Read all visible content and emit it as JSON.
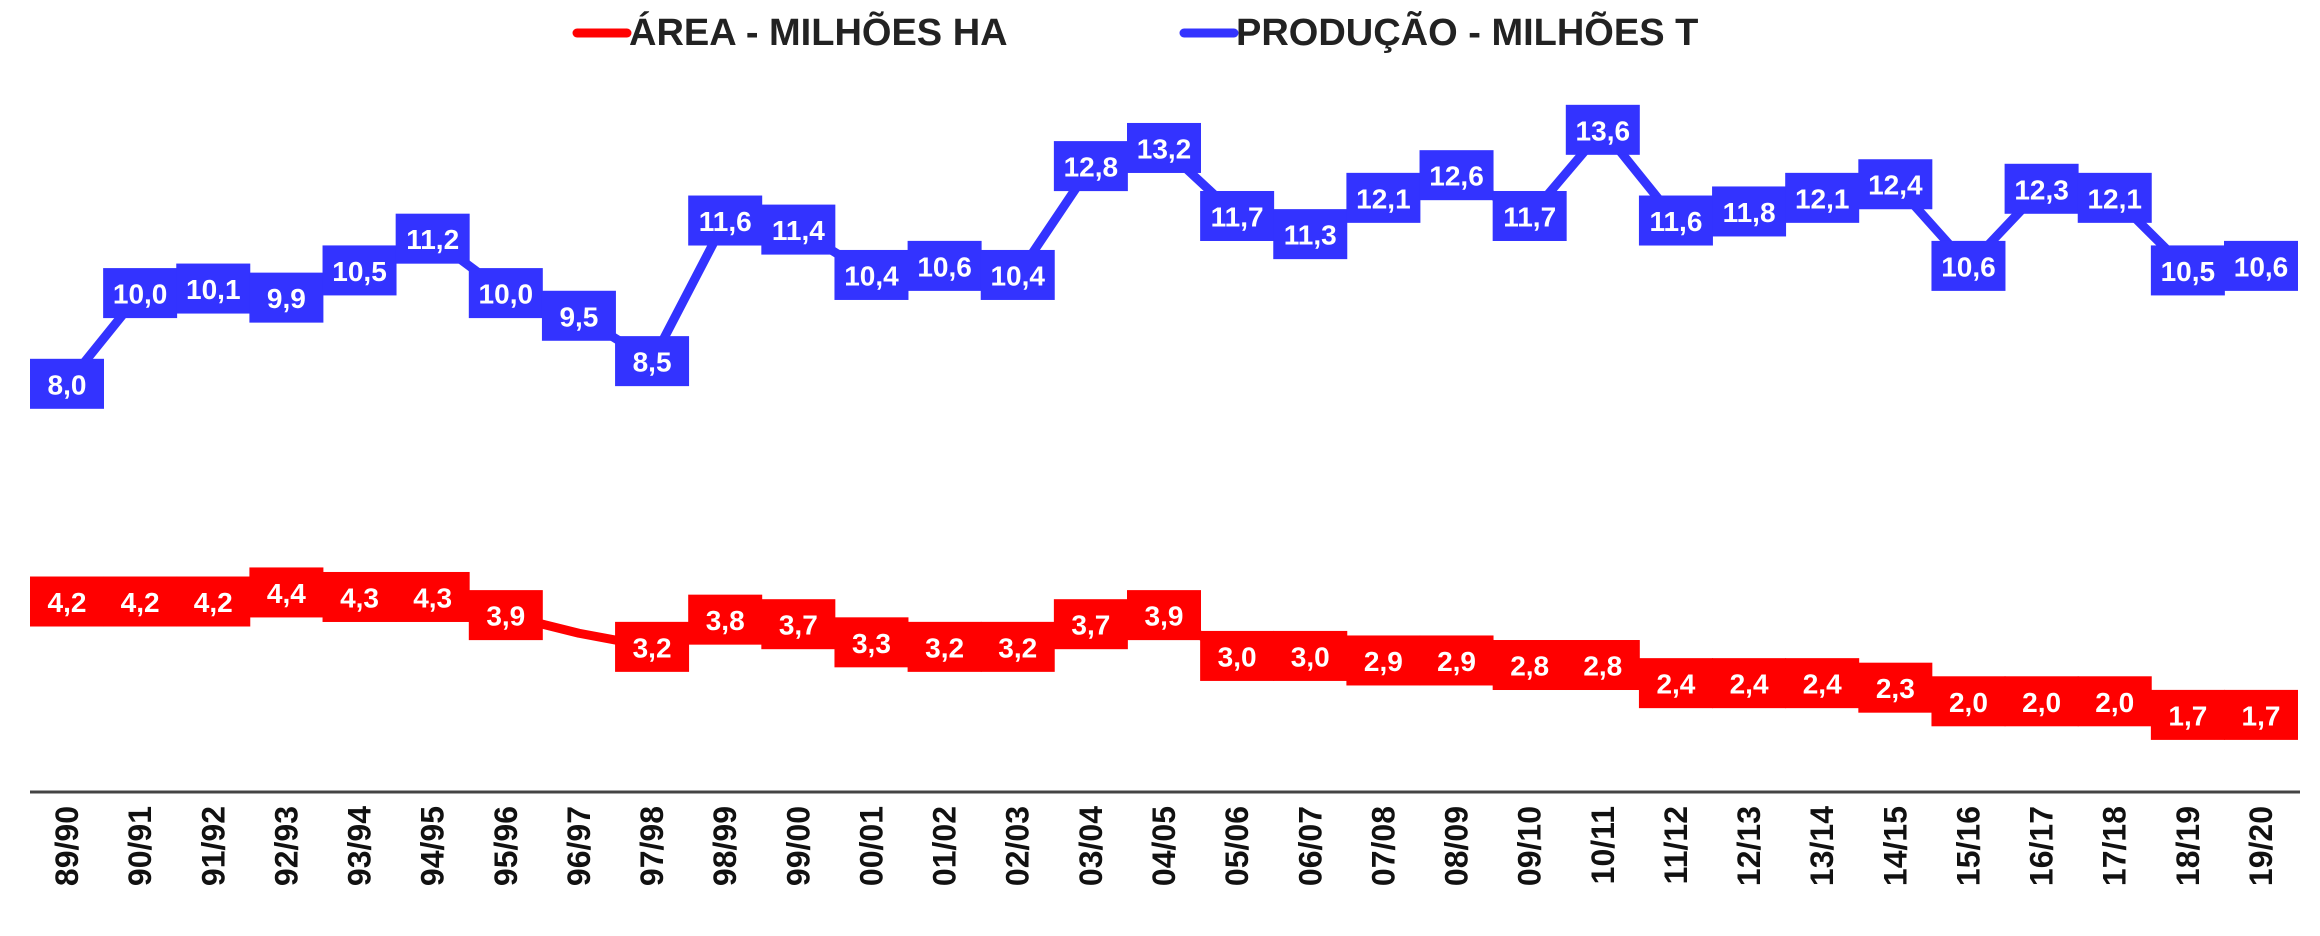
{
  "chart_data": {
    "type": "line",
    "categories": [
      "89/90",
      "90/91",
      "91/92",
      "92/93",
      "93/94",
      "94/95",
      "95/96",
      "96/97",
      "97/98",
      "98/99",
      "99/00",
      "00/01",
      "01/02",
      "02/03",
      "03/04",
      "04/05",
      "05/06",
      "06/07",
      "07/08",
      "08/09",
      "09/10",
      "10/11",
      "11/12",
      "12/13",
      "13/14",
      "14/15",
      "15/16",
      "16/17",
      "17/18",
      "18/19",
      "19/20"
    ],
    "series": [
      {
        "name": "ÁREA - MILHÕES HA",
        "color": "#ff0000",
        "values": [
          4.2,
          4.2,
          4.2,
          4.4,
          4.3,
          4.3,
          3.9,
          3.5,
          3.2,
          3.8,
          3.7,
          3.3,
          3.2,
          3.2,
          3.7,
          3.9,
          3.0,
          3.0,
          2.9,
          2.9,
          2.8,
          2.8,
          2.4,
          2.4,
          2.4,
          2.3,
          2.0,
          2.0,
          2.0,
          1.7,
          1.7
        ],
        "value_labels": [
          "4,2",
          "4,2",
          "4,2",
          "4,4",
          "4,3",
          "4,3",
          "3,9",
          null,
          "3,2",
          "3,8",
          "3,7",
          "3,3",
          "3,2",
          "3,2",
          "3,7",
          "3,9",
          "3,0",
          "3,0",
          "2,9",
          "2,9",
          "2,8",
          "2,8",
          "2,4",
          "2,4",
          "2,4",
          "2,3",
          "2,0",
          "2,0",
          "2,0",
          "1,7",
          "1,7"
        ]
      },
      {
        "name": "PRODUÇÃO - MILHÕES T",
        "color": "#3333ff",
        "axis": "y2",
        "values": [
          8.0,
          10.0,
          10.1,
          9.9,
          10.5,
          11.2,
          10.0,
          9.5,
          8.5,
          11.6,
          11.4,
          10.4,
          10.6,
          10.4,
          12.8,
          13.2,
          11.7,
          11.3,
          12.1,
          12.6,
          11.7,
          13.6,
          11.6,
          11.8,
          12.1,
          12.4,
          10.6,
          12.3,
          12.1,
          10.5,
          10.6
        ],
        "value_labels": [
          "8,0",
          "10,0",
          "10,1",
          "9,9",
          "10,5",
          "11,2",
          "10,0",
          "9,5",
          "8,5",
          "11,6",
          "11,4",
          "10,4",
          "10,6",
          "10,4",
          "12,8",
          "13,2",
          "11,7",
          "11,3",
          "12,1",
          "12,6",
          "11,7",
          "13,6",
          "11,6",
          "11,8",
          "12,1",
          "12,4",
          "10,6",
          "12,3",
          "12,1",
          "10,5",
          "10,6"
        ]
      }
    ],
    "ylim": [
      0,
      15.5
    ],
    "y2lim": [
      -1,
      14.5
    ]
  }
}
